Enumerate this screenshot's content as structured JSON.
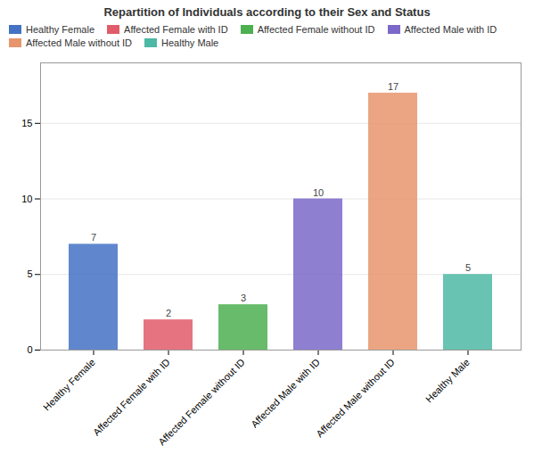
{
  "chart_data": {
    "type": "bar",
    "title": "Repartition of Individuals according to their Sex and Status",
    "categories": [
      "Healthy Female",
      "Affected Female with ID",
      "Affected Female without ID",
      "Affected Male with ID",
      "Affected Male without ID",
      "Healthy Male"
    ],
    "values": [
      7,
      2,
      3,
      10,
      17,
      5
    ],
    "colors": [
      "#4472C4",
      "#E05C6A",
      "#4CAF50",
      "#7B68C8",
      "#E8956D",
      "#4DB8A4"
    ],
    "ylim": [
      0,
      19
    ],
    "yticks": [
      0,
      5,
      10,
      15
    ],
    "grid": true,
    "data_labels": true,
    "legend": "upper left"
  }
}
